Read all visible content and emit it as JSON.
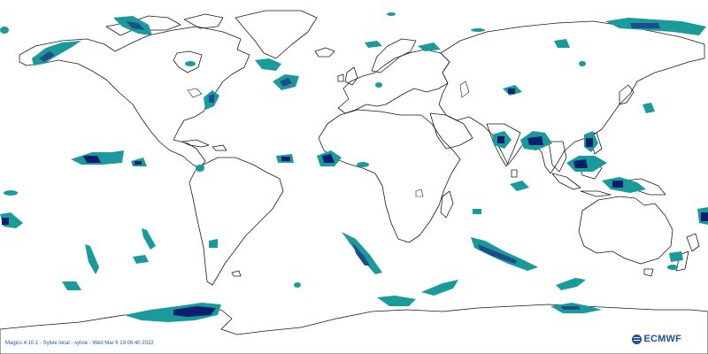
{
  "map": {
    "colors": {
      "background": "#ffffff",
      "coastline": "#1a1a1a",
      "level_low": "#1a9a9a",
      "level_mid": "#1c4d8a",
      "level_high": "#0b1f6e"
    }
  },
  "footer": {
    "text": "Magics 4.10.1 - Sylvie local - sylvie - Wed Mar  9 19:06:40 2022"
  },
  "logo": {
    "text": "ECMWF",
    "icon": "ecmwf-logo-icon"
  }
}
